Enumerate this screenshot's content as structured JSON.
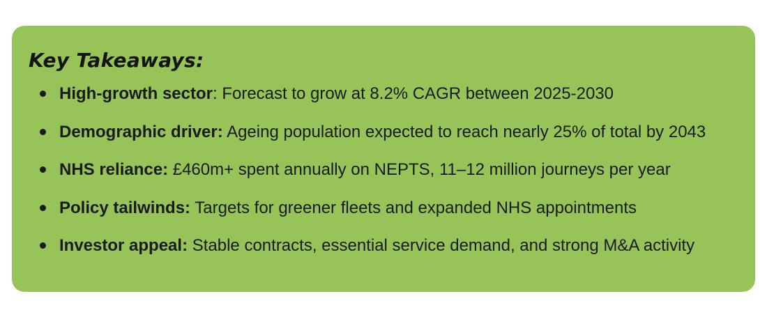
{
  "card": {
    "title": "Key Takeaways:",
    "items": [
      {
        "label": "High-growth sector",
        "text": ": Forecast to grow at 8.2% CAGR between 2025-2030"
      },
      {
        "label": "Demographic driver:",
        "text": " Ageing population expected to reach nearly 25% of total by 2043"
      },
      {
        "label": "NHS reliance:",
        "text": " £460m+ spent annually on NEPTS, 11–12 million journeys per year"
      },
      {
        "label": "Policy tailwinds:",
        "text": " Targets for greener fleets and expanded NHS appointments"
      },
      {
        "label": "Investor appeal:",
        "text": " Stable contracts, essential service demand, and strong M&A activity"
      }
    ]
  },
  "colors": {
    "card_background": "#97c459",
    "text": "#1a1a1a"
  }
}
